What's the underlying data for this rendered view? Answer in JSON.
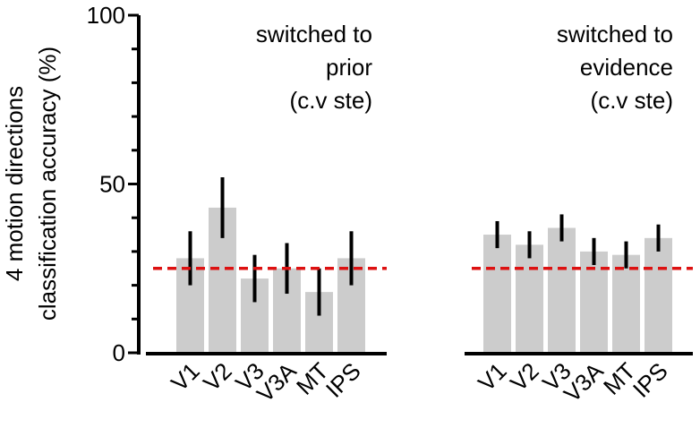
{
  "chart_data": {
    "type": "bar",
    "ylabel_lines": [
      "4 motion directions",
      "classification accuracy (%)"
    ],
    "ylim": [
      0,
      100
    ],
    "yticks": [
      "0",
      "50",
      "100"
    ],
    "chance_level": 25,
    "colors": {
      "bar": "#cccccc",
      "error_bar": "#000000",
      "chance_line": "#dd1111",
      "axis": "#000000"
    },
    "panels": [
      {
        "annotation": [
          "switched to",
          "prior",
          "(c.v ste)"
        ],
        "categories": [
          "V1",
          "V2",
          "V3",
          "V3A",
          "MT",
          "IPS"
        ],
        "values": [
          28,
          43,
          22,
          25,
          18,
          28
        ],
        "errors": [
          8,
          9,
          7,
          7.5,
          7,
          8
        ]
      },
      {
        "annotation": [
          "switched to",
          "evidence",
          "(c.v ste)"
        ],
        "categories": [
          "V1",
          "V2",
          "V3",
          "V3A",
          "MT",
          "IPS"
        ],
        "values": [
          35,
          32,
          37,
          30,
          29,
          34
        ],
        "errors": [
          4,
          4,
          4,
          4,
          4,
          4
        ]
      }
    ]
  }
}
